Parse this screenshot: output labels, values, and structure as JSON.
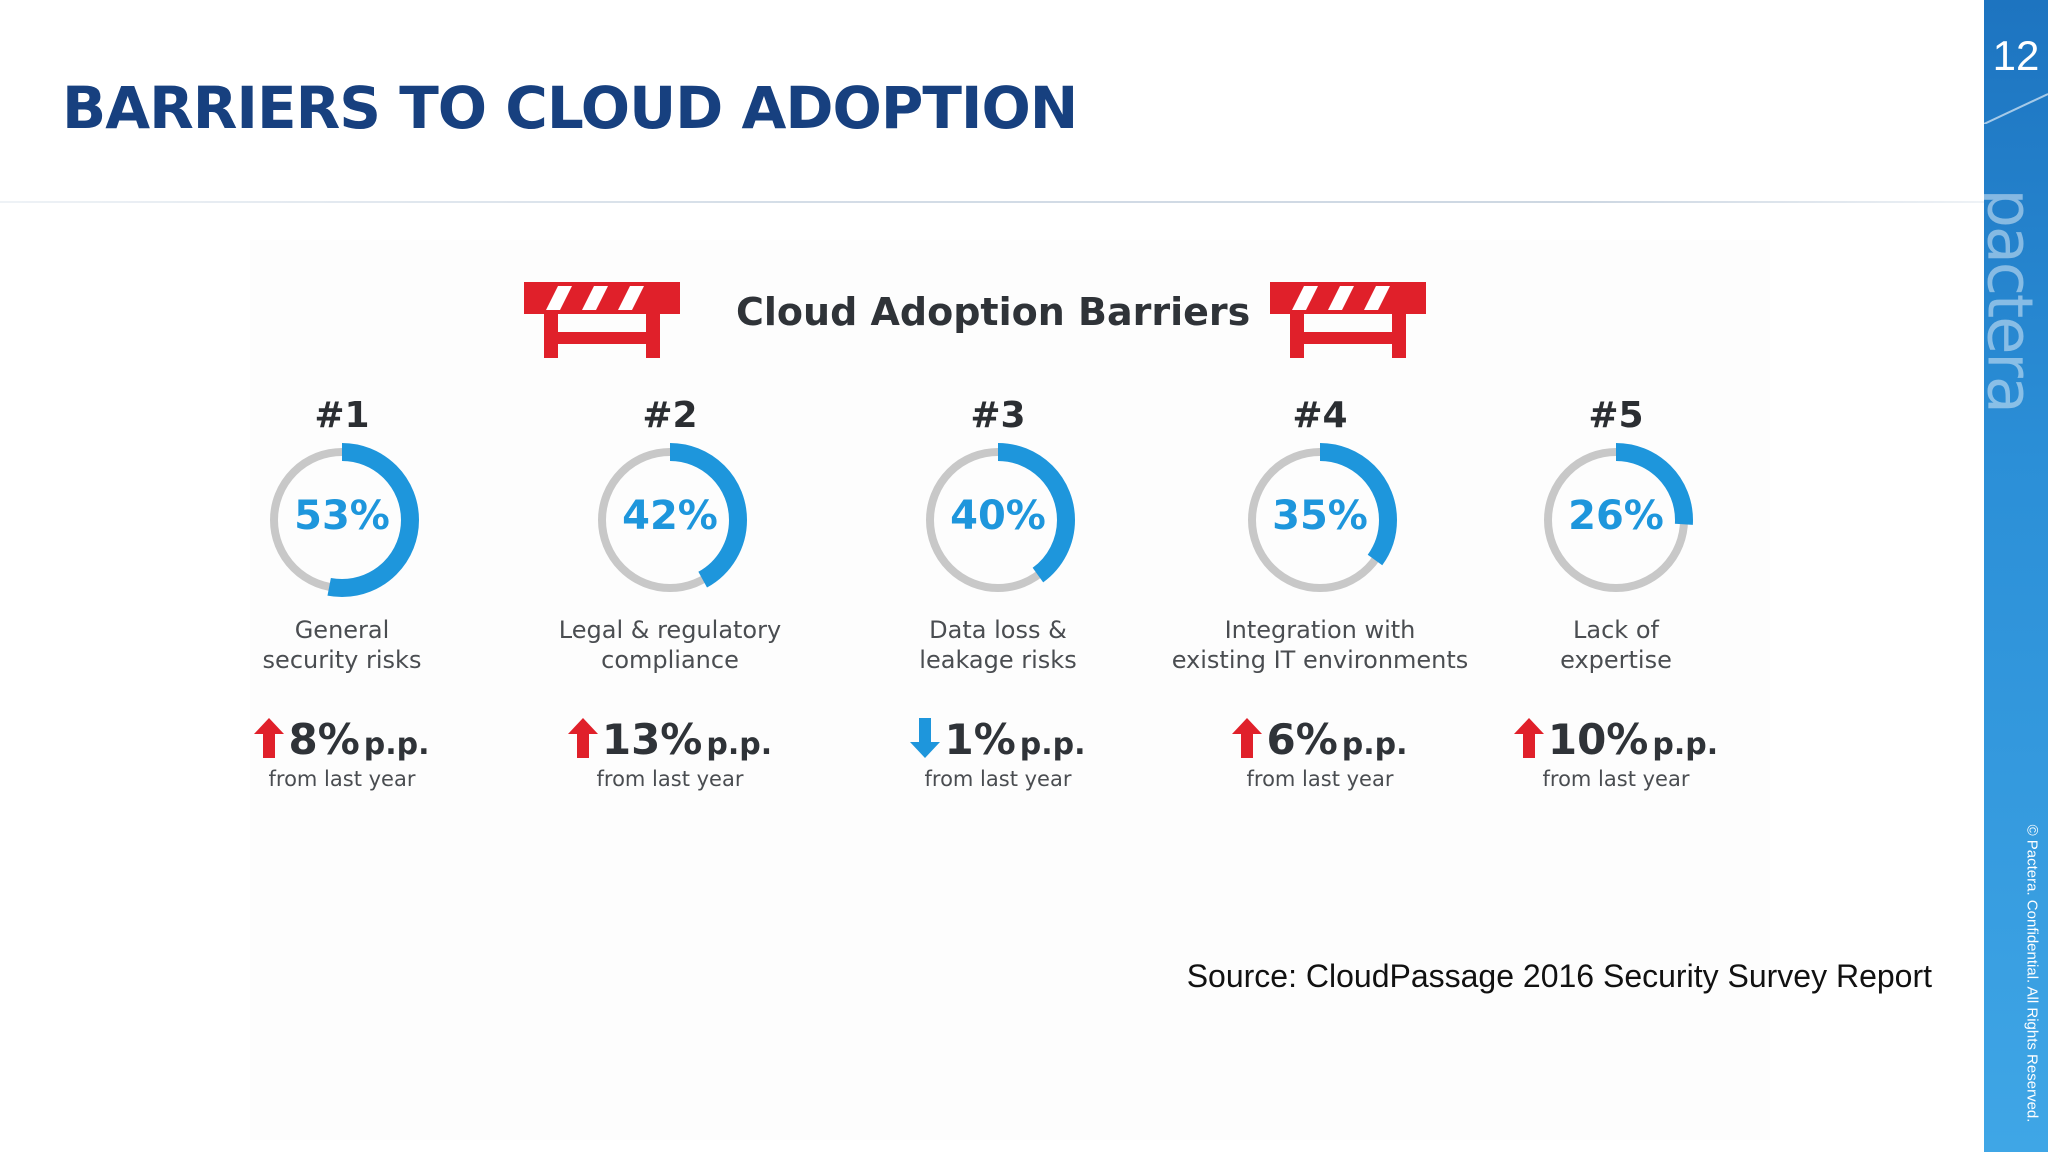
{
  "slide": {
    "title": "BARRIERS TO CLOUD ADOPTION",
    "page_number": "12",
    "brand": "pactera",
    "copyright": "© Pactera. Confidential. All Rights Reserved.",
    "source": "Source: CloudPassage 2016 Security Survey Report"
  },
  "colors": {
    "title": "#17407f",
    "ring_fill": "#1e96dc",
    "ring_track": "#c8c8c8",
    "arrow_up": "#e0202a",
    "arrow_down": "#1e96dc",
    "barrier_red": "#e0202a",
    "sidebar": "#2b8fd7"
  },
  "chart_data": {
    "type": "table",
    "title": "Cloud Adoption Barriers",
    "items": [
      {
        "rank": "#1",
        "value": 53,
        "label": "53%",
        "desc": [
          "General",
          "security risks"
        ],
        "direction": "up",
        "change": "8%",
        "unit": "p.p.",
        "change_note": "from last year"
      },
      {
        "rank": "#2",
        "value": 42,
        "label": "42%",
        "desc": [
          "Legal & regulatory",
          "compliance"
        ],
        "direction": "up",
        "change": "13%",
        "unit": "p.p.",
        "change_note": "from last year"
      },
      {
        "rank": "#3",
        "value": 40,
        "label": "40%",
        "desc": [
          "Data loss &",
          "leakage risks"
        ],
        "direction": "down",
        "change": "1%",
        "unit": "p.p.",
        "change_note": "from last year"
      },
      {
        "rank": "#4",
        "value": 35,
        "label": "35%",
        "desc": [
          "Integration with",
          "existing IT environments"
        ],
        "direction": "up",
        "change": "6%",
        "unit": "p.p.",
        "change_note": "from last year"
      },
      {
        "rank": "#5",
        "value": 26,
        "label": "26%",
        "desc": [
          "Lack of",
          "expertise"
        ],
        "direction": "up",
        "change": "10%",
        "unit": "p.p.",
        "change_note": "from last year"
      }
    ]
  }
}
